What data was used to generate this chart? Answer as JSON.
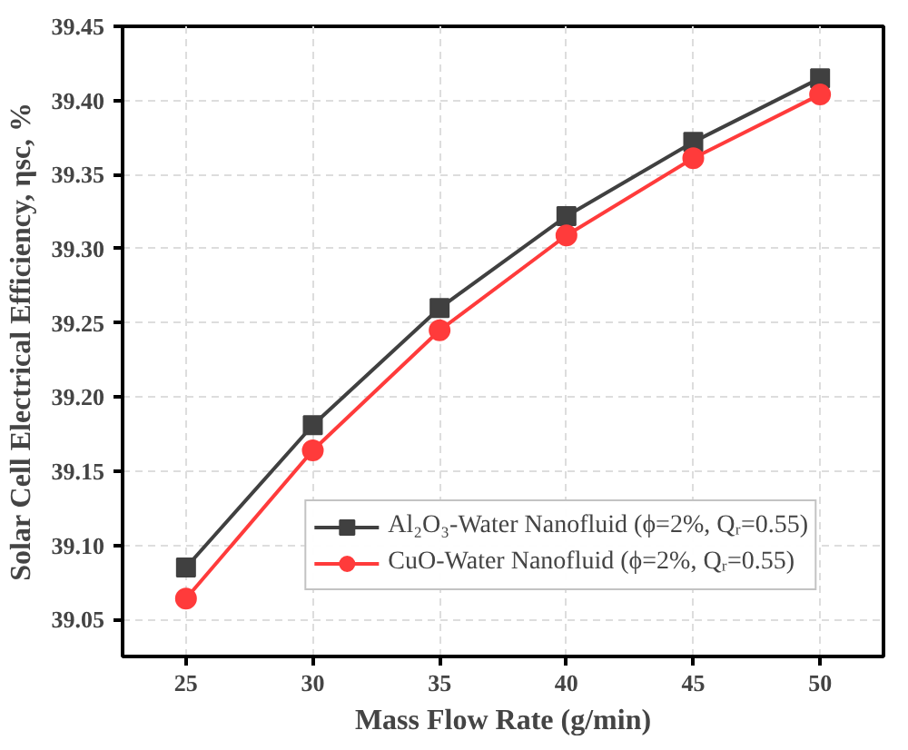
{
  "chart_data": {
    "type": "line",
    "xlabel": "Mass Flow Rate (g/min)",
    "ylabel": "Solar Cell Electrical Efficiency, ηsc, %",
    "x": [
      25,
      30,
      35,
      40,
      45,
      50
    ],
    "series": [
      {
        "name": "Al₂O₃-Water Nanofluid (ϕ=2%, Qᵣ=0.55)",
        "color": "#404040",
        "marker": "square",
        "values": [
          39.085,
          39.181,
          39.26,
          39.322,
          39.372,
          39.415
        ]
      },
      {
        "name": "CuO-Water Nanofluid (ϕ=2%, Qᵣ=0.55)",
        "color": "#ff3b3b",
        "marker": "circle",
        "values": [
          39.064,
          39.164,
          39.245,
          39.309,
          39.361,
          39.404
        ]
      }
    ],
    "xlim": [
      22.5,
      52.5
    ],
    "xticks": [
      25,
      30,
      35,
      40,
      45,
      50
    ],
    "ylim": [
      39.025,
      39.45
    ],
    "yticks": [
      {
        "value": 39.05,
        "label": "39.05"
      },
      {
        "value": 39.1,
        "label": "39.10"
      },
      {
        "value": 39.15,
        "label": "39.15"
      },
      {
        "value": 39.2,
        "label": "39.20"
      },
      {
        "value": 39.25,
        "label": "39.25"
      },
      {
        "value": 39.3,
        "label": "39.30"
      },
      {
        "value": 39.35,
        "label": "39.35"
      },
      {
        "value": 39.4,
        "label": "39.40"
      },
      {
        "value": 39.45,
        "label": "39.45"
      }
    ],
    "grid": true,
    "legend": "bottom right",
    "line_style": "solid"
  }
}
